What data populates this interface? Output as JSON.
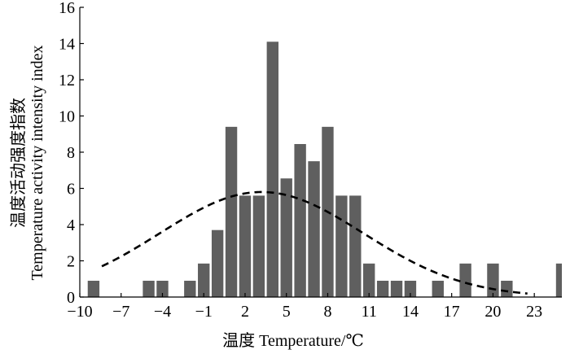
{
  "chart_data": {
    "type": "bar",
    "xlabel": "温度 Temperature/℃",
    "ylabel_cn": "温度活动强度指数",
    "ylabel_en": "Temperature activity intensity index",
    "xlim": [
      -10,
      25
    ],
    "ylim": [
      0,
      16
    ],
    "x_ticks": [
      -10,
      -7,
      -4,
      -1,
      2,
      5,
      8,
      11,
      14,
      17,
      20,
      23
    ],
    "x_tick_labels": [
      "−10",
      "−7",
      "−4",
      "−1",
      "2",
      "5",
      "8",
      "11",
      "14",
      "17",
      "20",
      "23"
    ],
    "y_ticks": [
      0,
      2,
      4,
      6,
      8,
      10,
      12,
      14,
      16
    ],
    "y_tick_labels": [
      "0",
      "2",
      "4",
      "6",
      "8",
      "10",
      "12",
      "14",
      "16"
    ],
    "bin_width": 1,
    "bars": [
      {
        "x": -9,
        "value": 0.9
      },
      {
        "x": -5,
        "value": 0.9
      },
      {
        "x": -4,
        "value": 0.9
      },
      {
        "x": -2,
        "value": 0.9
      },
      {
        "x": -1,
        "value": 1.85
      },
      {
        "x": 0,
        "value": 3.7
      },
      {
        "x": 1,
        "value": 9.4
      },
      {
        "x": 2,
        "value": 5.6
      },
      {
        "x": 3,
        "value": 5.6
      },
      {
        "x": 4,
        "value": 14.1
      },
      {
        "x": 5,
        "value": 6.55
      },
      {
        "x": 6,
        "value": 8.45
      },
      {
        "x": 7,
        "value": 7.5
      },
      {
        "x": 8,
        "value": 9.4
      },
      {
        "x": 9,
        "value": 5.6
      },
      {
        "x": 10,
        "value": 5.6
      },
      {
        "x": 11,
        "value": 1.85
      },
      {
        "x": 12,
        "value": 0.9
      },
      {
        "x": 13,
        "value": 0.9
      },
      {
        "x": 14,
        "value": 0.9
      },
      {
        "x": 16,
        "value": 0.9
      },
      {
        "x": 18,
        "value": 1.85
      },
      {
        "x": 20,
        "value": 1.85
      },
      {
        "x": 21,
        "value": 0.9
      },
      {
        "x": 25,
        "value": 1.85
      }
    ],
    "fit_curve": {
      "style": "dashed",
      "peak_x": 3.2,
      "peak_y": 5.8,
      "sigma": 7.4,
      "x_range": [
        -8.4,
        22.5
      ]
    },
    "colors": {
      "bar": "#5f5f5f",
      "curve": "#000000",
      "axis": "#000000"
    }
  }
}
